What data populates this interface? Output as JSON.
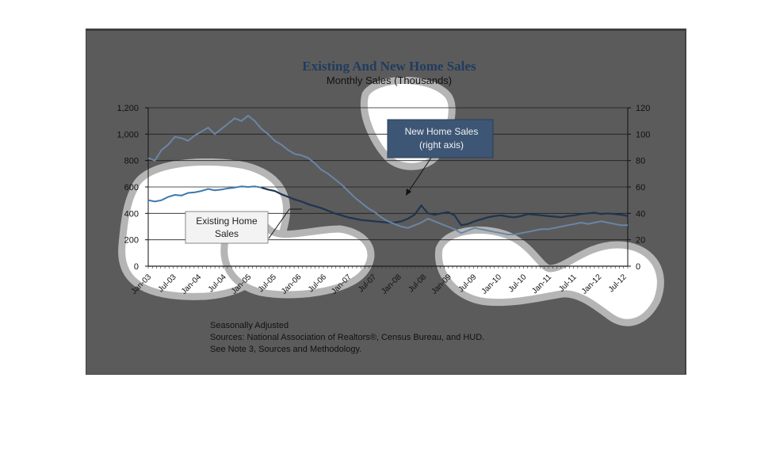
{
  "chart_data": {
    "type": "line",
    "title": "Existing And New Home Sales",
    "subtitle": "Monthly Sales (Thousands)",
    "left_axis": {
      "ylim": [
        0,
        1200
      ],
      "ticks": [
        "0",
        "200",
        "400",
        "600",
        "800",
        "1,000",
        "1,200"
      ]
    },
    "right_axis": {
      "ylim": [
        0,
        120
      ],
      "ticks": [
        "0",
        "20",
        "40",
        "60",
        "80",
        "100",
        "120"
      ]
    },
    "x_ticks": [
      "Jan-03",
      "Jul-03",
      "Jan-04",
      "Jul-04",
      "Jan-05",
      "Jul-05",
      "Jan-06",
      "Jul-06",
      "Jan-07",
      "Jul-07",
      "Jan-08",
      "Jul-08",
      "Jan-09",
      "Jul-09",
      "Jan-10",
      "Jul-10",
      "Jan-11",
      "Jul-11",
      "Jan-12",
      "Jul-12"
    ],
    "grid": true,
    "series": [
      {
        "name": "Existing Home Sales",
        "axis": "left",
        "color": "#3a6e9c",
        "points": [
          [
            0,
            500
          ],
          [
            2,
            490
          ],
          [
            4,
            500
          ],
          [
            6,
            525
          ],
          [
            8,
            540
          ],
          [
            10,
            535
          ],
          [
            12,
            555
          ],
          [
            14,
            560
          ],
          [
            16,
            570
          ],
          [
            18,
            585
          ],
          [
            20,
            575
          ],
          [
            22,
            580
          ],
          [
            24,
            590
          ],
          [
            26,
            595
          ],
          [
            28,
            605
          ],
          [
            30,
            600
          ],
          [
            32,
            605
          ],
          [
            34,
            595
          ],
          [
            36,
            580
          ],
          [
            38,
            570
          ],
          [
            40,
            545
          ],
          [
            42,
            525
          ],
          [
            44,
            505
          ],
          [
            46,
            490
          ],
          [
            48,
            470
          ],
          [
            50,
            455
          ],
          [
            52,
            440
          ],
          [
            54,
            420
          ],
          [
            56,
            400
          ],
          [
            58,
            385
          ],
          [
            60,
            370
          ],
          [
            62,
            360
          ],
          [
            64,
            350
          ],
          [
            66,
            345
          ],
          [
            68,
            340
          ],
          [
            70,
            335
          ],
          [
            72,
            330
          ],
          [
            74,
            330
          ],
          [
            76,
            340
          ],
          [
            78,
            360
          ],
          [
            80,
            390
          ],
          [
            82,
            460
          ],
          [
            84,
            400
          ],
          [
            86,
            390
          ],
          [
            88,
            400
          ],
          [
            90,
            410
          ],
          [
            92,
            385
          ],
          [
            94,
            310
          ],
          [
            96,
            320
          ],
          [
            98,
            340
          ],
          [
            100,
            355
          ],
          [
            102,
            370
          ],
          [
            104,
            380
          ],
          [
            106,
            385
          ],
          [
            108,
            375
          ],
          [
            110,
            370
          ],
          [
            112,
            380
          ],
          [
            114,
            395
          ],
          [
            116,
            390
          ],
          [
            118,
            385
          ],
          [
            120,
            380
          ],
          [
            122,
            375
          ],
          [
            124,
            370
          ],
          [
            126,
            380
          ],
          [
            128,
            385
          ],
          [
            130,
            395
          ],
          [
            132,
            400
          ],
          [
            134,
            405
          ],
          [
            136,
            395
          ],
          [
            138,
            400
          ],
          [
            140,
            395
          ],
          [
            142,
            390
          ],
          [
            144,
            380
          ]
        ]
      },
      {
        "name": "New Home Sales (right axis)",
        "axis": "right",
        "color": "#6a86a6",
        "points": [
          [
            0,
            82
          ],
          [
            2,
            80
          ],
          [
            4,
            88
          ],
          [
            6,
            92
          ],
          [
            8,
            98
          ],
          [
            10,
            97
          ],
          [
            12,
            95
          ],
          [
            14,
            99
          ],
          [
            16,
            102
          ],
          [
            18,
            105
          ],
          [
            20,
            100
          ],
          [
            22,
            104
          ],
          [
            24,
            108
          ],
          [
            26,
            112
          ],
          [
            28,
            110
          ],
          [
            30,
            114
          ],
          [
            32,
            110
          ],
          [
            34,
            104
          ],
          [
            36,
            100
          ],
          [
            38,
            95
          ],
          [
            40,
            92
          ],
          [
            42,
            88
          ],
          [
            44,
            85
          ],
          [
            46,
            84
          ],
          [
            48,
            82
          ],
          [
            50,
            78
          ],
          [
            52,
            73
          ],
          [
            54,
            70
          ],
          [
            56,
            66
          ],
          [
            58,
            62
          ],
          [
            60,
            57
          ],
          [
            62,
            52
          ],
          [
            64,
            48
          ],
          [
            66,
            44
          ],
          [
            68,
            41
          ],
          [
            70,
            37
          ],
          [
            72,
            34
          ],
          [
            74,
            32
          ],
          [
            76,
            30
          ],
          [
            78,
            29
          ],
          [
            80,
            31
          ],
          [
            82,
            33
          ],
          [
            84,
            36
          ],
          [
            86,
            34
          ],
          [
            88,
            32
          ],
          [
            90,
            30
          ],
          [
            92,
            28
          ],
          [
            94,
            25
          ],
          [
            96,
            27
          ],
          [
            98,
            29
          ],
          [
            100,
            28
          ],
          [
            102,
            27
          ],
          [
            104,
            26
          ],
          [
            106,
            25
          ],
          [
            108,
            24
          ],
          [
            110,
            24
          ],
          [
            112,
            25
          ],
          [
            114,
            26
          ],
          [
            116,
            27
          ],
          [
            118,
            28
          ],
          [
            120,
            28
          ],
          [
            122,
            29
          ],
          [
            124,
            30
          ],
          [
            126,
            31
          ],
          [
            128,
            32
          ],
          [
            130,
            33
          ],
          [
            132,
            32
          ],
          [
            134,
            33
          ],
          [
            136,
            34
          ],
          [
            138,
            33
          ],
          [
            140,
            32
          ],
          [
            142,
            31
          ],
          [
            144,
            31
          ]
        ]
      }
    ],
    "annotations": [
      {
        "text": "Existing Home Sales",
        "points_to": "Existing Home Sales"
      },
      {
        "text": "New Home Sales (right axis)",
        "points_to": "New Home Sales (right axis)"
      }
    ]
  },
  "labels": {
    "existing_line1": "Existing Home",
    "existing_line2": "Sales",
    "new_line1": "New Home Sales",
    "new_line2": "(right axis)"
  },
  "notes": {
    "line1": "Seasonally Adjusted",
    "line2": "Sources:  National Association of Realtors®, Census Bureau, and HUD.",
    "line3": "See Note 3, Sources and Methodology."
  },
  "colors": {
    "panel": "#5b5b5b",
    "existing": "#1f3550",
    "new": "#6a86a6",
    "grid": "#222222"
  }
}
